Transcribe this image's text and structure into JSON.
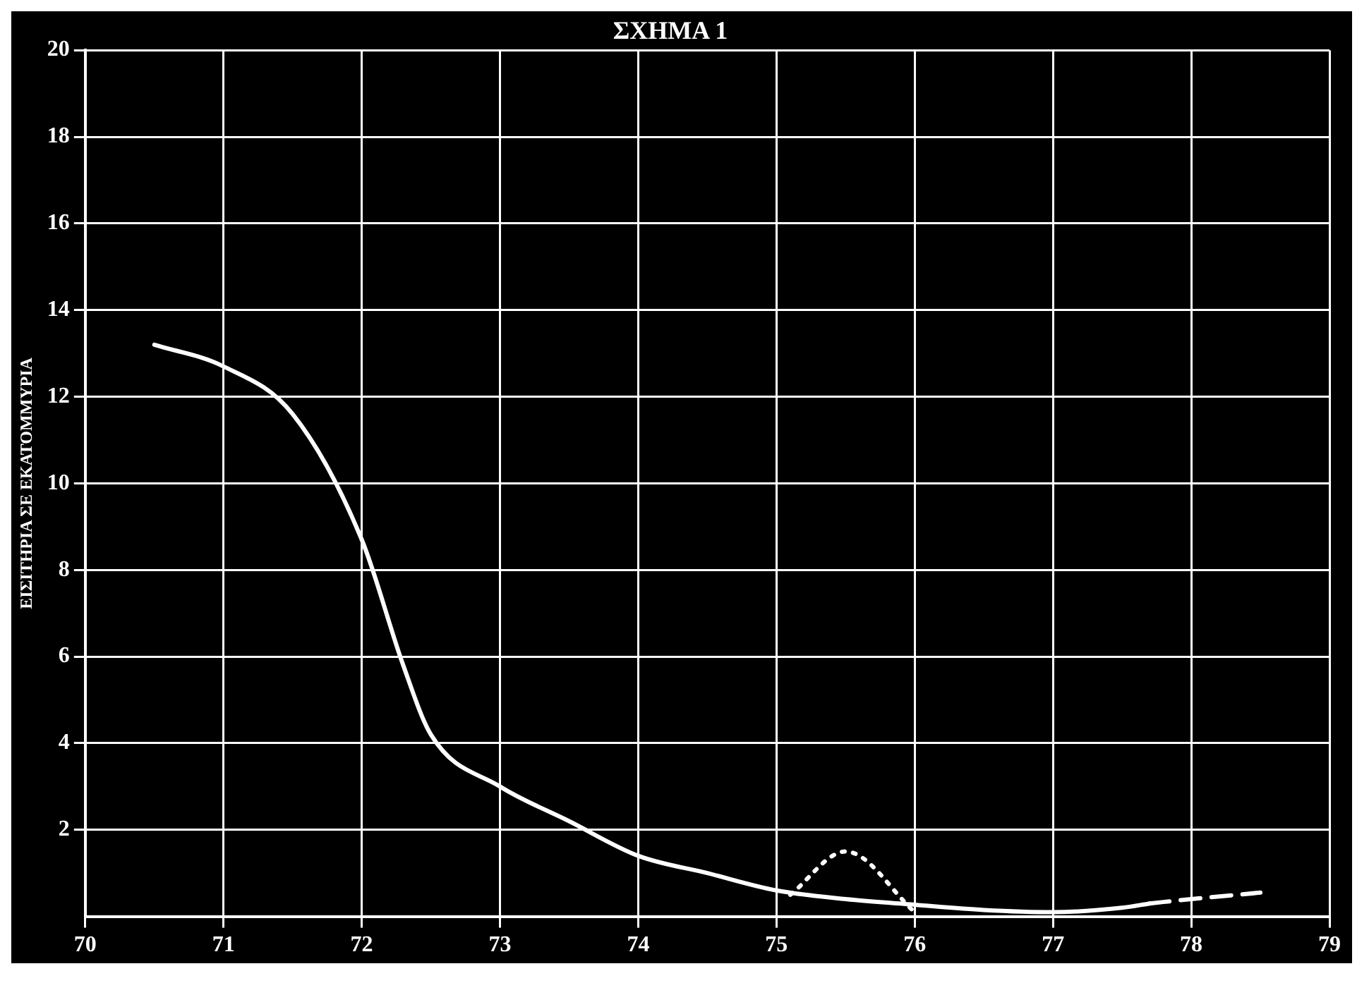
{
  "chart_data": {
    "type": "line",
    "title": "ΣΧΗΜΑ 1",
    "ylabel": "ΕΙΣΙΤΗΡΙΑ ΣΕ ΕΚΑΤΟΜΜΥΡΙΑ",
    "xlim": [
      70,
      79
    ],
    "xticks": [
      70,
      71,
      72,
      73,
      74,
      75,
      76,
      77,
      78,
      79
    ],
    "ylim": [
      0,
      20
    ],
    "yticks": [
      2,
      4,
      6,
      8,
      10,
      12,
      14,
      16,
      18,
      20
    ],
    "grid": true,
    "legend": false,
    "marker": "none",
    "series": [
      {
        "color": "#ffffff",
        "line_style": "solid",
        "x": [
          70.5,
          71,
          71.5,
          72,
          72.3,
          72.5,
          73,
          73.5,
          74,
          74.5,
          75,
          75.5,
          76,
          76.5,
          77,
          77.5,
          77.7
        ],
        "values": [
          13.2,
          12.7,
          11.6,
          8.7,
          5.8,
          4.2,
          3.0,
          2.2,
          1.4,
          1.0,
          0.6,
          0.4,
          0.27,
          0.15,
          0.1,
          0.2,
          0.3
        ]
      },
      {
        "color": "#ffffff",
        "line_style": "dashed",
        "x": [
          77.7,
          78,
          78.5
        ],
        "values": [
          0.3,
          0.4,
          0.55
        ]
      },
      {
        "color": "#ffffff",
        "line_style": "dotted",
        "x": [
          75.1,
          75.5,
          76
        ],
        "values": [
          0.5,
          1.5,
          0.1
        ]
      }
    ]
  }
}
